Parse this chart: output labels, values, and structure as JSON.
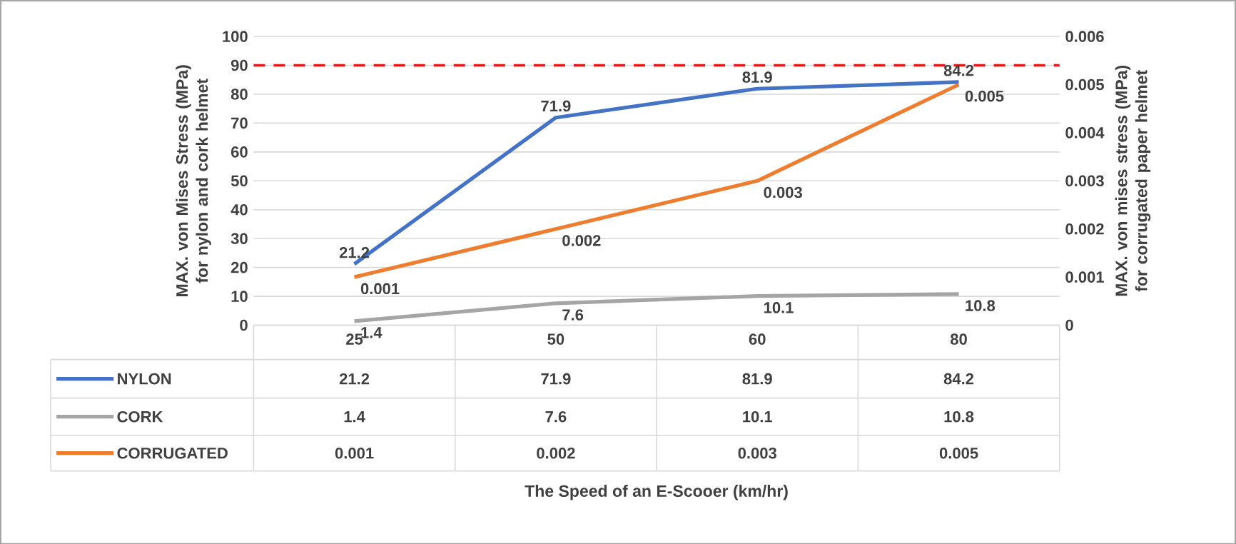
{
  "chart_data": {
    "type": "line",
    "annotations": [
      "The Speed of an E-Scooer (km/hr)"
    ],
    "ylabel": "MAX. von Mises Stress (MPa) for nylon and cork helmet",
    "y2label": "MAX. von mises stress (MPa) for corrugated paper helmet",
    "categories": [
      "25",
      "50",
      "60",
      "80"
    ],
    "series": [
      {
        "name": "NYLON",
        "color": "#4472c4",
        "values": [
          21.2,
          71.9,
          81.9,
          84.2
        ],
        "value_labels": [
          "21.2",
          "71.9",
          "81.9",
          "84.2"
        ]
      },
      {
        "name": "CORK",
        "color": "#a5a5a5",
        "values": [
          1.4,
          7.6,
          10.1,
          10.8
        ],
        "value_labels": [
          "1.4",
          "7.6",
          "10.1",
          "10.8"
        ]
      },
      {
        "name": "CORRUGATED",
        "color": "#ed7d31",
        "values": [
          0.001,
          0.002,
          0.003,
          0.005
        ],
        "value_labels": [
          "0.001",
          "0.002",
          "0.003",
          "0.005"
        ],
        "axis": "y2"
      }
    ],
    "ylim": [
      0,
      100
    ],
    "yticks": [
      0,
      10,
      20,
      30,
      40,
      50,
      60,
      70,
      80,
      90,
      100
    ],
    "y2lim": [
      0,
      0.006
    ],
    "y2ticks": [
      0,
      0.001,
      0.002,
      0.003,
      0.004,
      0.005,
      0.006
    ],
    "ref_lines": [
      {
        "axis": "y",
        "value": 90,
        "color": "#e31a1c",
        "line_style": "dashed"
      }
    ],
    "grid": "y",
    "legend": "bottom",
    "data_labels": true
  }
}
